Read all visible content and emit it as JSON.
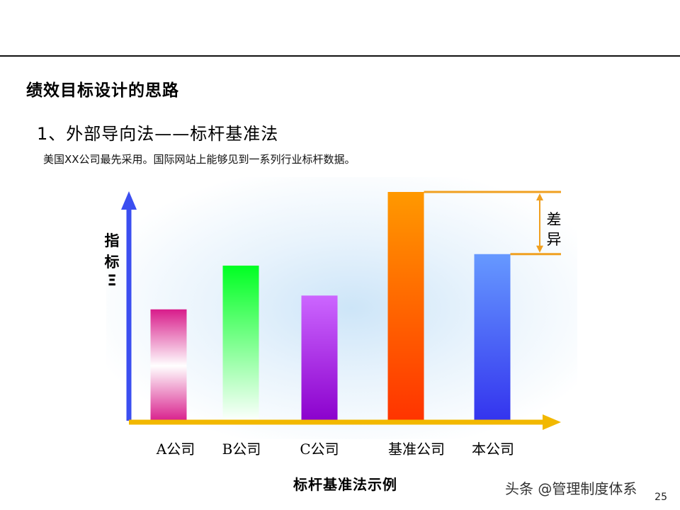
{
  "page": {
    "title": "绩效目标设计的思路",
    "section_heading": "1、外部导向法——标杆基准法",
    "note": "美国XX公司最先采用。国际网站上能够见到一系列行业标杆数据。",
    "watermark": "头条 @管理制度体系",
    "page_number": "25"
  },
  "chart_data": {
    "type": "bar",
    "title": "",
    "caption": "标杆基准法示例",
    "ylabel_chars": [
      "指",
      "标",
      "Ξ"
    ],
    "xlabel": "",
    "categories": [
      "A公司",
      "B公司",
      "C公司",
      "基准公司",
      "本公司"
    ],
    "values": [
      49,
      68,
      55,
      100,
      73
    ],
    "ylim": [
      0,
      100
    ],
    "grid": false,
    "legend": "none",
    "bar_gradients": [
      [
        "#d81b8a",
        "#ffffff",
        "#d81b8a"
      ],
      [
        "#00ff22",
        "#ffffff"
      ],
      [
        "#cc66ff",
        "#8a00cc"
      ],
      [
        "#ff9900",
        "#ff3300"
      ],
      [
        "#6699ff",
        "#3333ee"
      ]
    ],
    "axis_colors": {
      "y": "#3b4ef0",
      "x": "#f2b800"
    },
    "annotation": {
      "label_chars": [
        "差",
        "异"
      ],
      "between": [
        "基准公司",
        "本公司"
      ],
      "color": "#f0a020"
    }
  }
}
